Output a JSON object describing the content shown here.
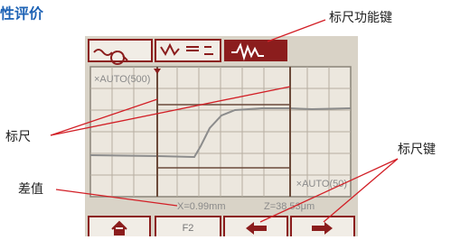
{
  "header": {
    "title": "性评价"
  },
  "callouts": {
    "function_keys": "标尺功能键",
    "cursor": "标尺",
    "difference": "差值",
    "cursor_keys": "标尺键"
  },
  "screen": {
    "x_scale": "×AUTO(500)",
    "z_scale": "×AUTO(50)",
    "x_readout": "X=0.99mm",
    "z_readout": "Z=38.53μm",
    "buttons": [
      "F2"
    ]
  }
}
